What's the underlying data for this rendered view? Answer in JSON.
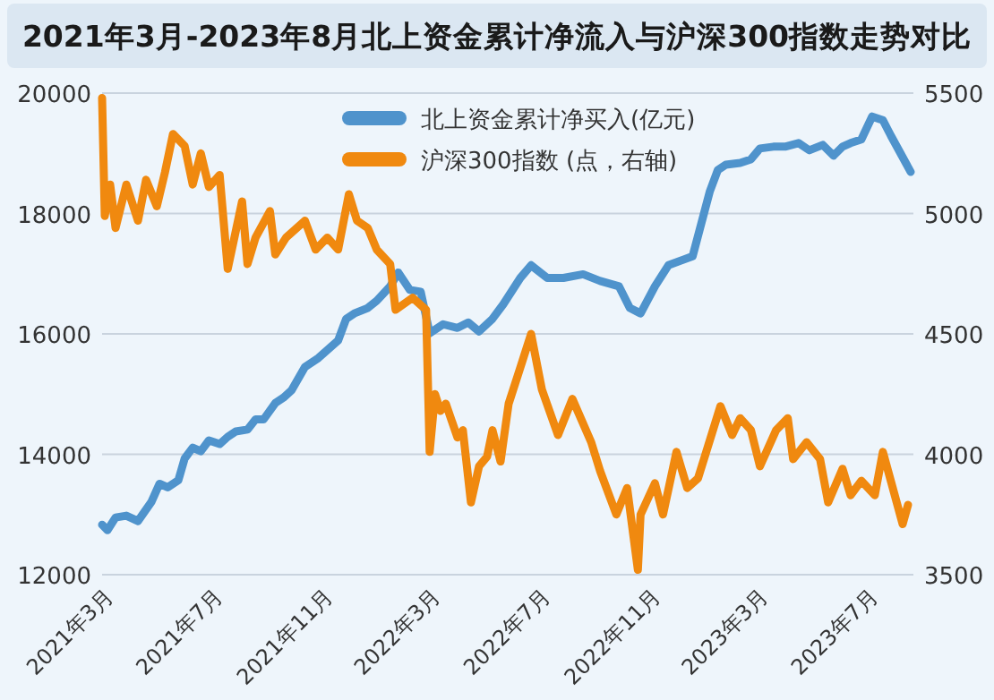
{
  "chart_data": {
    "type": "line",
    "title": "2021年3月-2023年8月北上资金累计净流入与沪深300指数走势对比",
    "xlim": [
      "2021-03-01",
      "2023-08-22"
    ],
    "xticks": [
      {
        "value": "2021-03",
        "label": "2021年3月"
      },
      {
        "value": "2021-07",
        "label": "2021年7月"
      },
      {
        "value": "2021-11",
        "label": "2021年11月"
      },
      {
        "value": "2022-03",
        "label": "2022年3月"
      },
      {
        "value": "2022-07",
        "label": "2022年7月"
      },
      {
        "value": "2022-11",
        "label": "2022年11月"
      },
      {
        "value": "2023-03",
        "label": "2023年3月"
      },
      {
        "value": "2023-07",
        "label": "2023年7月"
      }
    ],
    "ylim": [
      12000,
      20000
    ],
    "yticks": [
      12000,
      14000,
      16000,
      18000,
      20000
    ],
    "y2lim": [
      3500,
      5500
    ],
    "y2ticks": [
      3500,
      4000,
      4500,
      5000,
      5500
    ],
    "grid": "y",
    "legend": "top",
    "line_style": "solid",
    "series": [
      {
        "name": "北上资金累计净买入(亿元)",
        "color": "#4f93cc",
        "x": [
          "2021-03-01",
          "2021-03-07",
          "2021-03-16",
          "2021-03-28",
          "2021-04-10",
          "2021-04-25",
          "2021-05-04",
          "2021-05-13",
          "2021-05-25",
          "2021-06-01",
          "2021-06-10",
          "2021-06-19",
          "2021-06-28",
          "2021-07-10",
          "2021-07-19",
          "2021-07-28",
          "2021-08-10",
          "2021-08-19",
          "2021-08-28",
          "2021-09-10",
          "2021-09-19",
          "2021-09-28",
          "2021-10-13",
          "2021-10-28",
          "2021-11-19",
          "2021-11-28",
          "2021-12-07",
          "2021-12-22",
          "2022-01-01",
          "2022-01-16",
          "2022-01-25",
          "2022-02-07",
          "2022-02-19",
          "2022-03-01",
          "2022-03-16",
          "2022-04-01",
          "2022-04-13",
          "2022-04-25",
          "2022-05-10",
          "2022-05-22",
          "2022-06-10",
          "2022-06-22",
          "2022-07-10",
          "2022-07-28",
          "2022-08-19",
          "2022-09-07",
          "2022-09-28",
          "2022-10-10",
          "2022-10-22",
          "2022-11-07",
          "2022-11-22",
          "2022-12-19",
          "2023-01-07",
          "2023-01-16",
          "2023-01-25",
          "2023-02-10",
          "2023-02-22",
          "2023-03-04",
          "2023-03-19",
          "2023-04-01",
          "2023-04-16",
          "2023-04-28",
          "2023-05-13",
          "2023-05-25",
          "2023-06-04",
          "2023-06-13",
          "2023-06-25",
          "2023-07-07",
          "2023-07-19",
          "2023-07-28",
          "2023-08-19"
        ],
        "values": [
          12830,
          12740,
          12950,
          12980,
          12890,
          13210,
          13510,
          13450,
          13570,
          13930,
          14110,
          14050,
          14230,
          14170,
          14290,
          14380,
          14410,
          14580,
          14580,
          14850,
          14940,
          15060,
          15450,
          15600,
          15890,
          16250,
          16340,
          16430,
          16550,
          16790,
          17020,
          16730,
          16700,
          16010,
          16160,
          16100,
          16190,
          16040,
          16250,
          16490,
          16930,
          17140,
          16930,
          16930,
          16990,
          16880,
          16790,
          16430,
          16340,
          16790,
          17140,
          17290,
          18360,
          18720,
          18810,
          18840,
          18900,
          19080,
          19110,
          19110,
          19170,
          19050,
          19140,
          18960,
          19110,
          19170,
          19230,
          19610,
          19550,
          19290,
          18690
        ]
      },
      {
        "name": "沪深300指数 (点，右轴)",
        "color": "#f0890f",
        "axis": "y2",
        "x": [
          "2021-03-01",
          "2021-03-04",
          "2021-03-10",
          "2021-03-16",
          "2021-03-28",
          "2021-04-10",
          "2021-04-19",
          "2021-05-01",
          "2021-05-10",
          "2021-05-19",
          "2021-06-01",
          "2021-06-10",
          "2021-06-19",
          "2021-06-28",
          "2021-07-10",
          "2021-07-19",
          "2021-08-04",
          "2021-08-10",
          "2021-08-19",
          "2021-09-04",
          "2021-09-10",
          "2021-09-22",
          "2021-10-13",
          "2021-10-25",
          "2021-11-07",
          "2021-11-19",
          "2021-12-01",
          "2021-12-10",
          "2021-12-22",
          "2022-01-01",
          "2022-01-16",
          "2022-01-22",
          "2022-02-10",
          "2022-02-25",
          "2022-03-01",
          "2022-03-07",
          "2022-03-13",
          "2022-03-19",
          "2022-04-01",
          "2022-04-07",
          "2022-04-16",
          "2022-04-25",
          "2022-05-04",
          "2022-05-10",
          "2022-05-19",
          "2022-05-28",
          "2022-06-10",
          "2022-06-22",
          "2022-07-04",
          "2022-07-22",
          "2022-08-07",
          "2022-08-28",
          "2022-09-07",
          "2022-09-25",
          "2022-10-07",
          "2022-10-19",
          "2022-10-22",
          "2022-11-07",
          "2022-11-16",
          "2022-12-01",
          "2022-12-13",
          "2022-12-25",
          "2023-01-19",
          "2023-02-01",
          "2023-02-10",
          "2023-02-22",
          "2023-03-04",
          "2023-03-22",
          "2023-04-04",
          "2023-04-10",
          "2023-04-25",
          "2023-05-10",
          "2023-05-19",
          "2023-06-04",
          "2023-06-13",
          "2023-06-25",
          "2023-07-10",
          "2023-07-19",
          "2023-08-10",
          "2023-08-16"
        ],
        "values": [
          5480,
          4990,
          5120,
          4940,
          5120,
          4970,
          5140,
          5030,
          5170,
          5330,
          5280,
          5120,
          5250,
          5110,
          5160,
          4770,
          5050,
          4790,
          4900,
          5010,
          4830,
          4900,
          4970,
          4850,
          4900,
          4850,
          5080,
          4970,
          4940,
          4850,
          4790,
          4600,
          4650,
          4600,
          4010,
          4250,
          4180,
          4210,
          4070,
          4100,
          3800,
          3950,
          3990,
          4100,
          3970,
          4210,
          4360,
          4500,
          4270,
          4080,
          4230,
          4050,
          3930,
          3750,
          3860,
          3520,
          3750,
          3880,
          3750,
          4010,
          3860,
          3900,
          4200,
          4080,
          4150,
          4100,
          3950,
          4100,
          4150,
          3980,
          4050,
          3980,
          3800,
          3940,
          3830,
          3890,
          3830,
          4010,
          3710,
          3790
        ]
      }
    ]
  }
}
